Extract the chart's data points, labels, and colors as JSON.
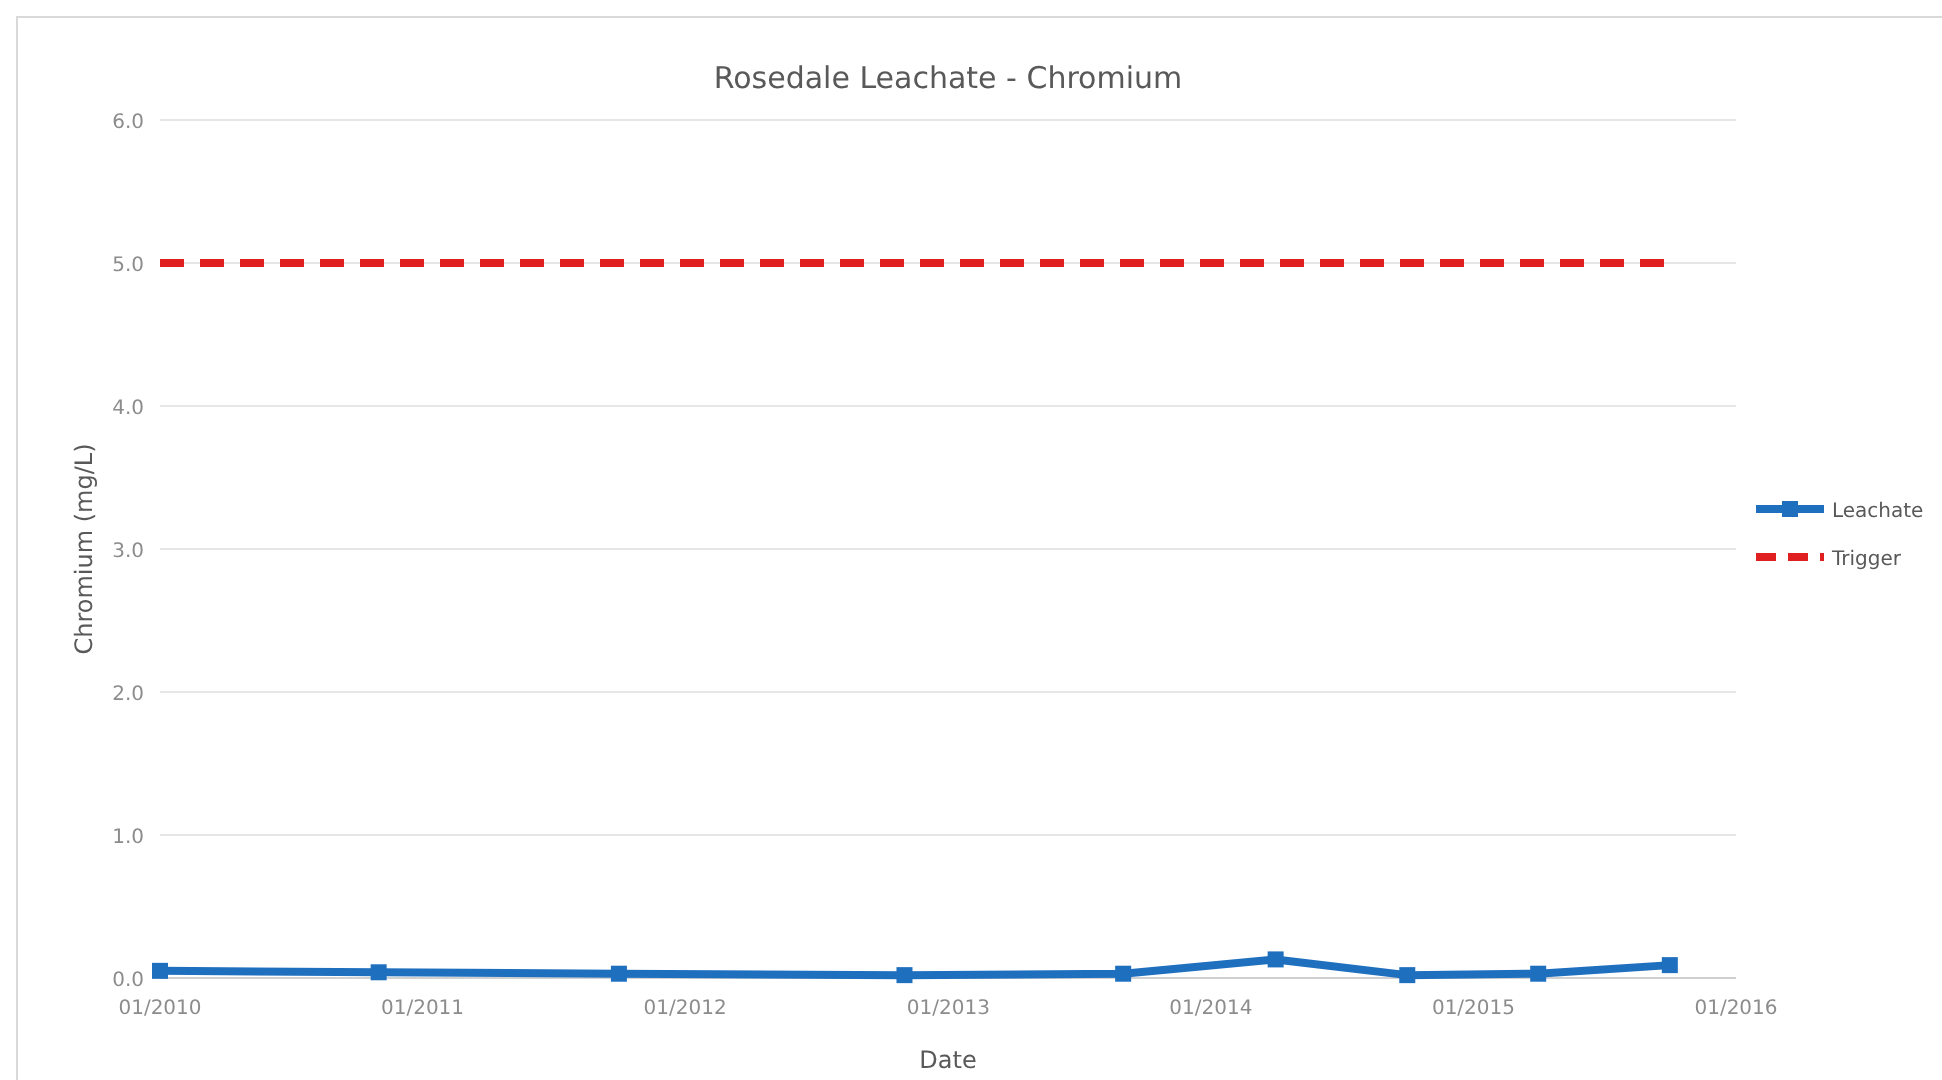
{
  "chart_data": {
    "type": "line",
    "title": "Rosedale Leachate - Chromium",
    "xlabel": "Date",
    "ylabel": "Chromium (mg/L)",
    "xlim": [
      "2010-01",
      "2016-01"
    ],
    "xticks": [
      {
        "value": "2010-01",
        "label": "01/2010"
      },
      {
        "value": "2011-01",
        "label": "01/2011"
      },
      {
        "value": "2012-01",
        "label": "01/2012"
      },
      {
        "value": "2013-01",
        "label": "01/2013"
      },
      {
        "value": "2014-01",
        "label": "01/2014"
      },
      {
        "value": "2015-01",
        "label": "01/2015"
      },
      {
        "value": "2016-01",
        "label": "01/2016"
      }
    ],
    "ylim": [
      0,
      6
    ],
    "yticks": [
      {
        "value": 0,
        "label": "0.0"
      },
      {
        "value": 1,
        "label": "1.0"
      },
      {
        "value": 2,
        "label": "2.0"
      },
      {
        "value": 3,
        "label": "3.0"
      },
      {
        "value": 4,
        "label": "4.0"
      },
      {
        "value": 5,
        "label": "5.0"
      },
      {
        "value": 6,
        "label": "6.0"
      }
    ],
    "grid": "y",
    "legend": "right",
    "series": [
      {
        "name": "Leachate",
        "color": "#1f6fbf",
        "marker": "square",
        "line_style": "solid",
        "x": [
          "2010-01",
          "2010-11",
          "2011-10",
          "2012-11",
          "2013-09",
          "2014-04",
          "2014-10",
          "2015-04",
          "2015-10"
        ],
        "values": [
          0.05,
          0.04,
          0.03,
          0.02,
          0.03,
          0.13,
          0.02,
          0.03,
          0.09
        ]
      },
      {
        "name": "Trigger",
        "color": "#e02020",
        "marker": "none",
        "line_style": "dashed",
        "x": [
          "2010-01",
          "2015-10"
        ],
        "values": [
          5,
          5
        ]
      }
    ]
  }
}
